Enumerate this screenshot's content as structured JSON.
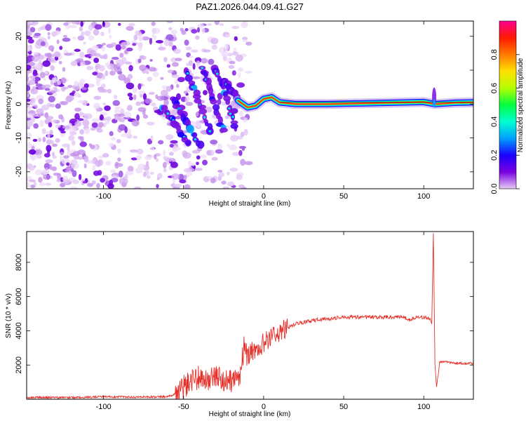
{
  "title": "PAZ1.2026.044.09.41.G27",
  "chart_data": [
    {
      "type": "heatmap",
      "name": "spectrogram",
      "xlabel": "Height of straight line (km)",
      "ylabel": "Frequency (Hz)",
      "xlim": [
        -148,
        131
      ],
      "ylim": [
        -25,
        24.5
      ],
      "xticks": [
        -100,
        -50,
        0,
        50,
        100
      ],
      "yticks": [
        -20,
        -10,
        0,
        10,
        20
      ],
      "colorbar": {
        "label": "Normalized spectral amplitude",
        "range": [
          0,
          1
        ],
        "ticks": [
          "0.0",
          "0.2",
          "0.4",
          "0.6",
          "0.8"
        ],
        "tick_values": [
          0,
          0.2,
          0.4,
          0.6,
          0.8
        ],
        "colormap": [
          "#e7cdf6",
          "#7a00e0",
          "#1a00ff",
          "#00a0ff",
          "#00ffd2",
          "#00ff40",
          "#b4ff00",
          "#ffe000",
          "#ff7a00",
          "#ff1a00",
          "#ff0090"
        ]
      },
      "ridge": [
        {
          "x": -16,
          "y": 1.0
        },
        {
          "x": -10,
          "y": -1.0
        },
        {
          "x": -5,
          "y": -0.5
        },
        {
          "x": 0,
          "y": 1.5
        },
        {
          "x": 5,
          "y": 2.0
        },
        {
          "x": 10,
          "y": 0.5
        },
        {
          "x": 20,
          "y": 0.0
        },
        {
          "x": 40,
          "y": 0.0
        },
        {
          "x": 60,
          "y": 0.2
        },
        {
          "x": 80,
          "y": 0.4
        },
        {
          "x": 100,
          "y": 0.6
        },
        {
          "x": 107,
          "y": 0.0
        },
        {
          "x": 120,
          "y": 0.4
        },
        {
          "x": 131,
          "y": 0.5
        }
      ],
      "ridge_bands": [
        {
          "x0": -63,
          "y0": -1,
          "x1": -47,
          "y1": -12
        },
        {
          "x0": -57,
          "y0": 2,
          "x1": -40,
          "y1": -12
        },
        {
          "x0": -48,
          "y0": 10,
          "x1": -33,
          "y1": -8
        },
        {
          "x0": -38,
          "y0": 11,
          "x1": -25,
          "y1": -8
        },
        {
          "x0": -30,
          "y0": 11,
          "x1": -18,
          "y1": -6
        },
        {
          "x0": -25,
          "y0": 7,
          "x1": -14,
          "y1": 0
        }
      ]
    },
    {
      "type": "line",
      "name": "snr",
      "xlabel": "Height of straight line (km)",
      "ylabel": "SNR (10 * v/v)",
      "xlim": [
        -148,
        131
      ],
      "ylim": [
        0,
        9800
      ],
      "xticks": [
        -100,
        -50,
        0,
        50,
        100
      ],
      "yticks": [
        2000,
        4000,
        6000,
        8000
      ],
      "color": "#e8302a",
      "x": [
        -148,
        -120,
        -100,
        -80,
        -60,
        -55,
        -50,
        -45,
        -40,
        -35,
        -30,
        -25,
        -20,
        -15,
        -12,
        -10,
        -8,
        -5,
        0,
        5,
        10,
        15,
        20,
        30,
        40,
        50,
        60,
        70,
        80,
        88,
        90,
        95,
        100,
        104,
        105,
        106,
        107,
        108,
        110,
        120,
        131
      ],
      "y": [
        100,
        100,
        150,
        120,
        150,
        300,
        700,
        1100,
        1300,
        1200,
        1300,
        1100,
        1000,
        1400,
        3200,
        2300,
        2800,
        2800,
        3300,
        3600,
        3900,
        4200,
        4400,
        4600,
        4700,
        4800,
        4800,
        4800,
        4800,
        4800,
        4600,
        4800,
        4800,
        4700,
        4400,
        9700,
        2000,
        700,
        2200,
        2100,
        2100
      ]
    }
  ]
}
